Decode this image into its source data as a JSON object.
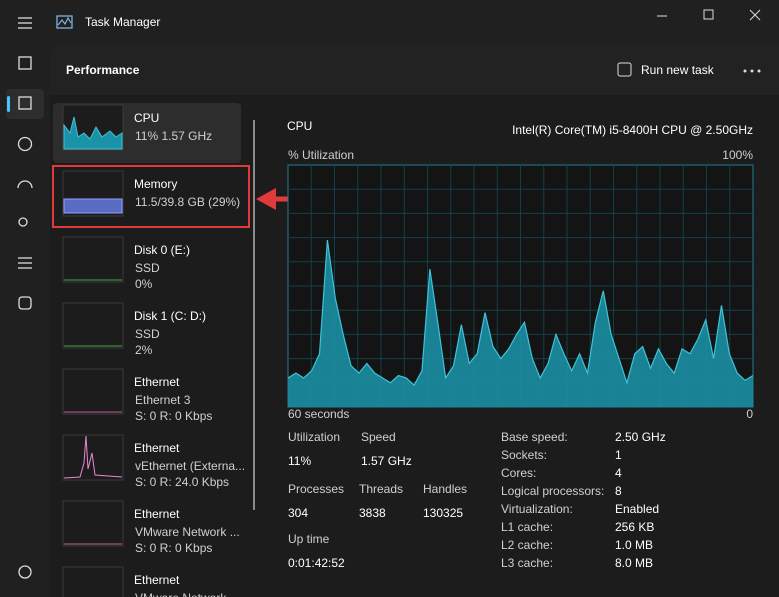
{
  "title_bar": {
    "title": "Task Manager"
  },
  "header": {
    "title": "Performance",
    "run_new_task": "Run new task"
  },
  "sidebar": [
    {
      "name": "CPU",
      "lines": [
        "11%  1.57 GHz"
      ]
    },
    {
      "name": "Memory",
      "lines": [
        "11.5/39.8 GB (29%)"
      ]
    },
    {
      "name": "Disk 0 (E:)",
      "lines": [
        "SSD",
        "0%"
      ]
    },
    {
      "name": "Disk 1 (C: D:)",
      "lines": [
        "SSD",
        "2%"
      ]
    },
    {
      "name": "Ethernet",
      "lines": [
        "Ethernet 3",
        "S: 0 R: 0 Kbps"
      ]
    },
    {
      "name": "Ethernet",
      "lines": [
        "vEthernet (Externa...",
        "S: 0 R: 24.0 Kbps"
      ]
    },
    {
      "name": "Ethernet",
      "lines": [
        "VMware Network ...",
        "S: 0 R: 0 Kbps"
      ]
    },
    {
      "name": "Ethernet",
      "lines": [
        "VMware Network ..."
      ]
    }
  ],
  "main": {
    "title": "CPU",
    "processor": "Intel(R) Core(TM) i5-8400H CPU @ 2.50GHz",
    "graph": {
      "y_label": "% Utilization",
      "y_max_label": "100%",
      "x_left_label": "60 seconds",
      "x_right_label": "0",
      "ylim": [
        0,
        100
      ],
      "values": [
        12,
        14,
        12,
        15,
        22,
        69,
        45,
        30,
        17,
        14,
        18,
        14,
        12,
        10,
        13,
        12,
        9,
        15,
        57,
        35,
        12,
        17,
        34,
        18,
        22,
        39,
        25,
        20,
        24,
        30,
        35,
        20,
        12,
        18,
        30,
        22,
        15,
        22,
        14,
        35,
        48,
        30,
        20,
        10,
        22,
        25,
        16,
        24,
        18,
        14,
        24,
        22,
        28,
        36,
        20,
        42,
        22,
        14,
        11,
        13
      ]
    },
    "stats": [
      {
        "label": "Utilization",
        "value": "11%"
      },
      {
        "label": "Speed",
        "value": "1.57 GHz"
      },
      {
        "label": "Processes",
        "value": "304"
      },
      {
        "label": "Threads",
        "value": "3838"
      },
      {
        "label": "Handles",
        "value": "130325"
      },
      {
        "label": "Up time",
        "value": "0:01:42:52"
      }
    ],
    "specs": [
      {
        "label": "Base speed:",
        "value": "2.50 GHz"
      },
      {
        "label": "Sockets:",
        "value": "1"
      },
      {
        "label": "Cores:",
        "value": "4"
      },
      {
        "label": "Logical processors:",
        "value": "8"
      },
      {
        "label": "Virtualization:",
        "value": "Enabled"
      },
      {
        "label": "L1 cache:",
        "value": "256 KB"
      },
      {
        "label": "L2 cache:",
        "value": "1.0 MB"
      },
      {
        "label": "L3 cache:",
        "value": "8.0 MB"
      }
    ]
  }
}
